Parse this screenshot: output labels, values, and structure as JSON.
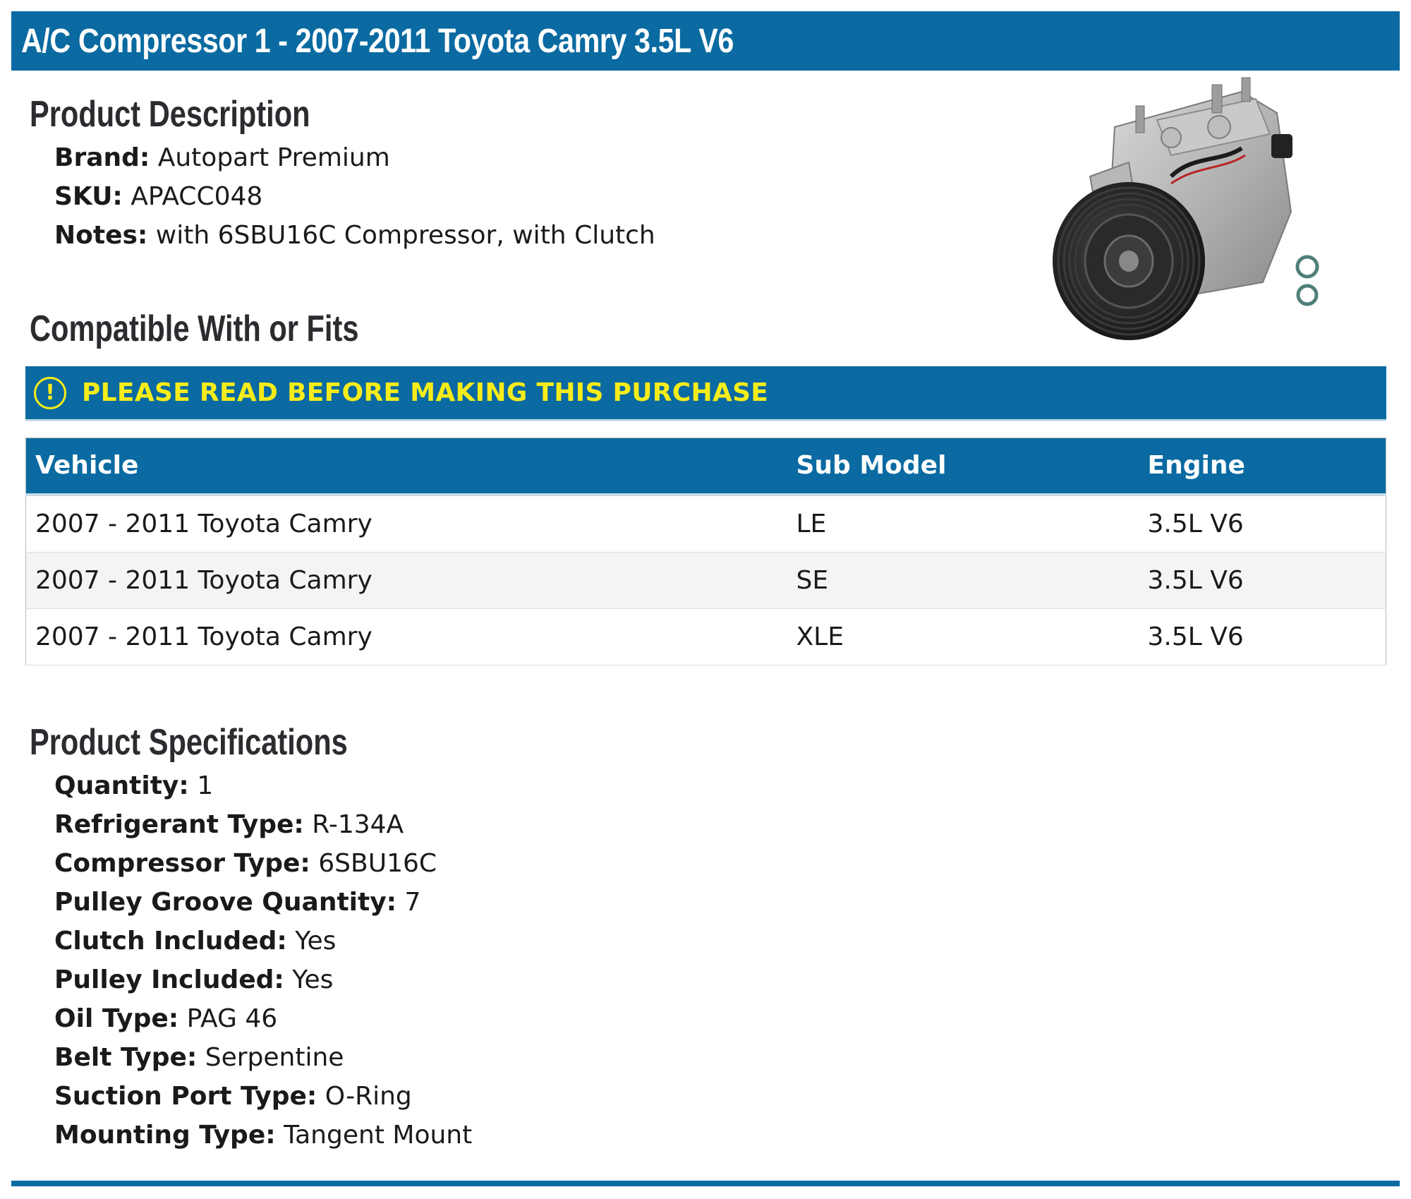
{
  "title": "A/C Compressor 1 - 2007-2011 Toyota Camry 3.5L V6",
  "description": {
    "heading": "Product Description",
    "items": [
      {
        "label": "Brand:",
        "value": "Autopart Premium"
      },
      {
        "label": "SKU:",
        "value": "APACC048"
      },
      {
        "label": "Notes:",
        "value": "with 6SBU16C Compressor, with Clutch"
      }
    ]
  },
  "compatibility": {
    "heading": "Compatible With or Fits",
    "notice": "PLEASE READ BEFORE MAKING THIS PURCHASE",
    "notice_icon": "exclamation-circle-icon",
    "columns": [
      "Vehicle",
      "Sub Model",
      "Engine"
    ],
    "rows": [
      [
        "2007 - 2011 Toyota Camry",
        "LE",
        "3.5L V6"
      ],
      [
        "2007 - 2011 Toyota Camry",
        "SE",
        "3.5L V6"
      ],
      [
        "2007 - 2011 Toyota Camry",
        "XLE",
        "3.5L V6"
      ]
    ]
  },
  "specifications": {
    "heading": "Product Specifications",
    "items": [
      {
        "label": "Quantity:",
        "value": "1"
      },
      {
        "label": "Refrigerant Type:",
        "value": "R-134A"
      },
      {
        "label": "Compressor Type:",
        "value": "6SBU16C"
      },
      {
        "label": "Pulley Groove Quantity:",
        "value": "7"
      },
      {
        "label": "Clutch Included:",
        "value": "Yes"
      },
      {
        "label": "Pulley Included:",
        "value": "Yes"
      },
      {
        "label": "Oil Type:",
        "value": "PAG 46"
      },
      {
        "label": "Belt Type:",
        "value": "Serpentine"
      },
      {
        "label": "Suction Port Type:",
        "value": "O-Ring"
      },
      {
        "label": "Mounting Type:",
        "value": "Tangent Mount"
      }
    ]
  },
  "colors": {
    "brand_blue": "#0a6aa1",
    "notice_yellow": "#f5ec1a",
    "heading_dark": "#2b2b30"
  }
}
